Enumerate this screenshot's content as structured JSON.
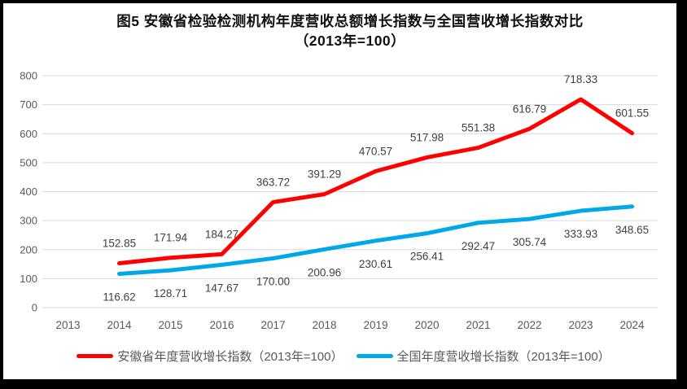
{
  "title": {
    "line1": "图5  安徽省检验检测机构年度营收总额增长指数与全国营收增长指数对比",
    "line2": "（2013年=100）"
  },
  "chart_data": {
    "type": "line",
    "categories": [
      "2013",
      "2014",
      "2015",
      "2016",
      "2017",
      "2018",
      "2019",
      "2020",
      "2021",
      "2022",
      "2023",
      "2024"
    ],
    "series": [
      {
        "key": "anhui",
        "name": "安徽省年度营收增长指数（2013年=100）",
        "color": "#FF0000",
        "label_position": "above",
        "values": [
          null,
          152.85,
          171.94,
          184.27,
          363.72,
          391.29,
          470.57,
          517.98,
          551.38,
          616.79,
          718.33,
          601.55
        ],
        "labels": [
          null,
          "152.85",
          "171.94",
          "184.27",
          "363.72",
          "391.29",
          "470.57",
          "517.98",
          "551.38",
          "616.79",
          "718.33",
          "601.55"
        ]
      },
      {
        "key": "national",
        "name": "全国年度营收增长指数（2013年=100）",
        "color": "#00A8E8",
        "label_position": "below",
        "values": [
          null,
          116.62,
          128.71,
          147.67,
          170.0,
          200.96,
          230.61,
          256.41,
          292.47,
          305.74,
          333.93,
          348.65
        ],
        "labels": [
          null,
          "116.62",
          "128.71",
          "147.67",
          "170.00",
          "200.96",
          "230.61",
          "256.41",
          "292.47",
          "305.74",
          "333.93",
          "348.65"
        ]
      }
    ],
    "ylim": [
      0,
      800
    ],
    "y_ticks": [
      0,
      100,
      200,
      300,
      400,
      500,
      600,
      700,
      800
    ],
    "grid": true,
    "legend_position": "bottom",
    "grid_color": "#D9D9D9",
    "tick_color": "#595959",
    "label_color": "#404040",
    "frame_color": "#000000"
  }
}
